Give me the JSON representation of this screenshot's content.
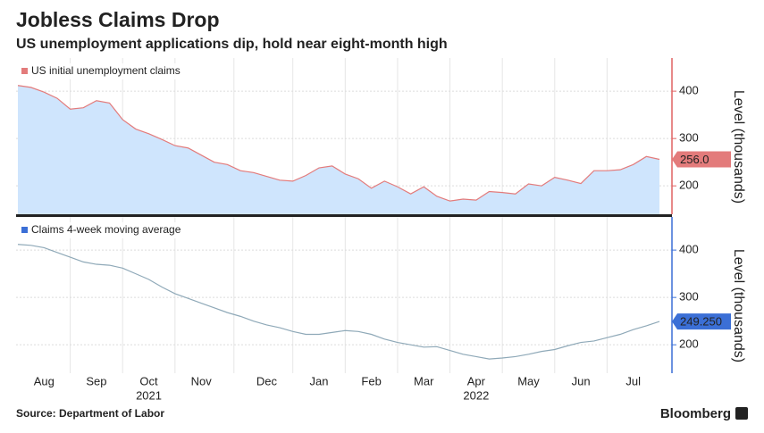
{
  "title": "Jobless Claims Drop",
  "subtitle": "US unemployment applications dip, hold near eight-month high",
  "source": "Source: Department of Labor",
  "brand": "Bloomberg",
  "chart_data": [
    {
      "type": "area",
      "y_label": "Level (thousands)",
      "ylim": [
        140,
        470
      ],
      "yticks": [
        200,
        300,
        400
      ],
      "grid": true,
      "series": [
        {
          "name": "US initial unemployment claims",
          "color": "#e37b7b",
          "fill": "#cfe5fd",
          "values": [
            412,
            408,
            398,
            385,
            362,
            365,
            380,
            375,
            340,
            320,
            310,
            298,
            285,
            280,
            265,
            250,
            245,
            232,
            228,
            220,
            212,
            210,
            222,
            238,
            242,
            225,
            215,
            195,
            210,
            198,
            183,
            198,
            178,
            168,
            172,
            170,
            188,
            186,
            183,
            204,
            200,
            218,
            212,
            205,
            232,
            232,
            234,
            245,
            262,
            256
          ],
          "value_labels": [
            null,
            null,
            null,
            null,
            null,
            null,
            null,
            null,
            null,
            null,
            null,
            null,
            null,
            null,
            null,
            null,
            null,
            null,
            null,
            null,
            null,
            null,
            null,
            null,
            null,
            null,
            null,
            null,
            null,
            null,
            null,
            null,
            null,
            null,
            null,
            null,
            null,
            null,
            null,
            null,
            null,
            null,
            null,
            null,
            null,
            null,
            null,
            null,
            null,
            "256.0"
          ]
        }
      ]
    },
    {
      "type": "line",
      "y_label": "Level (thousands)",
      "ylim": [
        140,
        470
      ],
      "yticks": [
        200,
        300,
        400
      ],
      "grid": true,
      "categories": [
        null,
        null,
        "Aug",
        null,
        null,
        null,
        "Sep",
        null,
        null,
        null,
        "Oct",
        null,
        null,
        null,
        "Nov",
        null,
        null,
        null,
        null,
        "Dec",
        null,
        null,
        null,
        "Jan",
        null,
        null,
        null,
        "Feb",
        null,
        null,
        null,
        "Mar",
        null,
        null,
        null,
        "Apr",
        null,
        null,
        null,
        "May",
        null,
        null,
        null,
        "Jun",
        null,
        null,
        null,
        "Jul",
        null,
        null
      ],
      "years": [
        null,
        null,
        null,
        null,
        null,
        null,
        null,
        null,
        null,
        null,
        "2021",
        null,
        null,
        null,
        null,
        null,
        null,
        null,
        null,
        null,
        null,
        null,
        null,
        null,
        null,
        null,
        null,
        null,
        null,
        null,
        null,
        null,
        null,
        null,
        null,
        "2022",
        null,
        null,
        null,
        null,
        null,
        null,
        null,
        null,
        null,
        null,
        null,
        null,
        null,
        null
      ],
      "series": [
        {
          "name": "Claims 4-week moving average",
          "color": "#8fa9b8",
          "label_color": "#3b6fd6",
          "values": [
            412,
            410,
            405,
            395,
            385,
            375,
            370,
            368,
            362,
            350,
            338,
            322,
            308,
            298,
            288,
            278,
            268,
            260,
            250,
            242,
            236,
            228,
            222,
            222,
            226,
            230,
            228,
            222,
            212,
            205,
            200,
            195,
            196,
            188,
            180,
            175,
            170,
            172,
            175,
            180,
            186,
            190,
            198,
            205,
            208,
            215,
            222,
            232,
            240,
            249.25
          ],
          "value_labels": [
            null,
            null,
            null,
            null,
            null,
            null,
            null,
            null,
            null,
            null,
            null,
            null,
            null,
            null,
            null,
            null,
            null,
            null,
            null,
            null,
            null,
            null,
            null,
            null,
            null,
            null,
            null,
            null,
            null,
            null,
            null,
            null,
            null,
            null,
            null,
            null,
            null,
            null,
            null,
            null,
            null,
            null,
            null,
            null,
            null,
            null,
            null,
            null,
            null,
            "249.250"
          ]
        }
      ]
    }
  ]
}
